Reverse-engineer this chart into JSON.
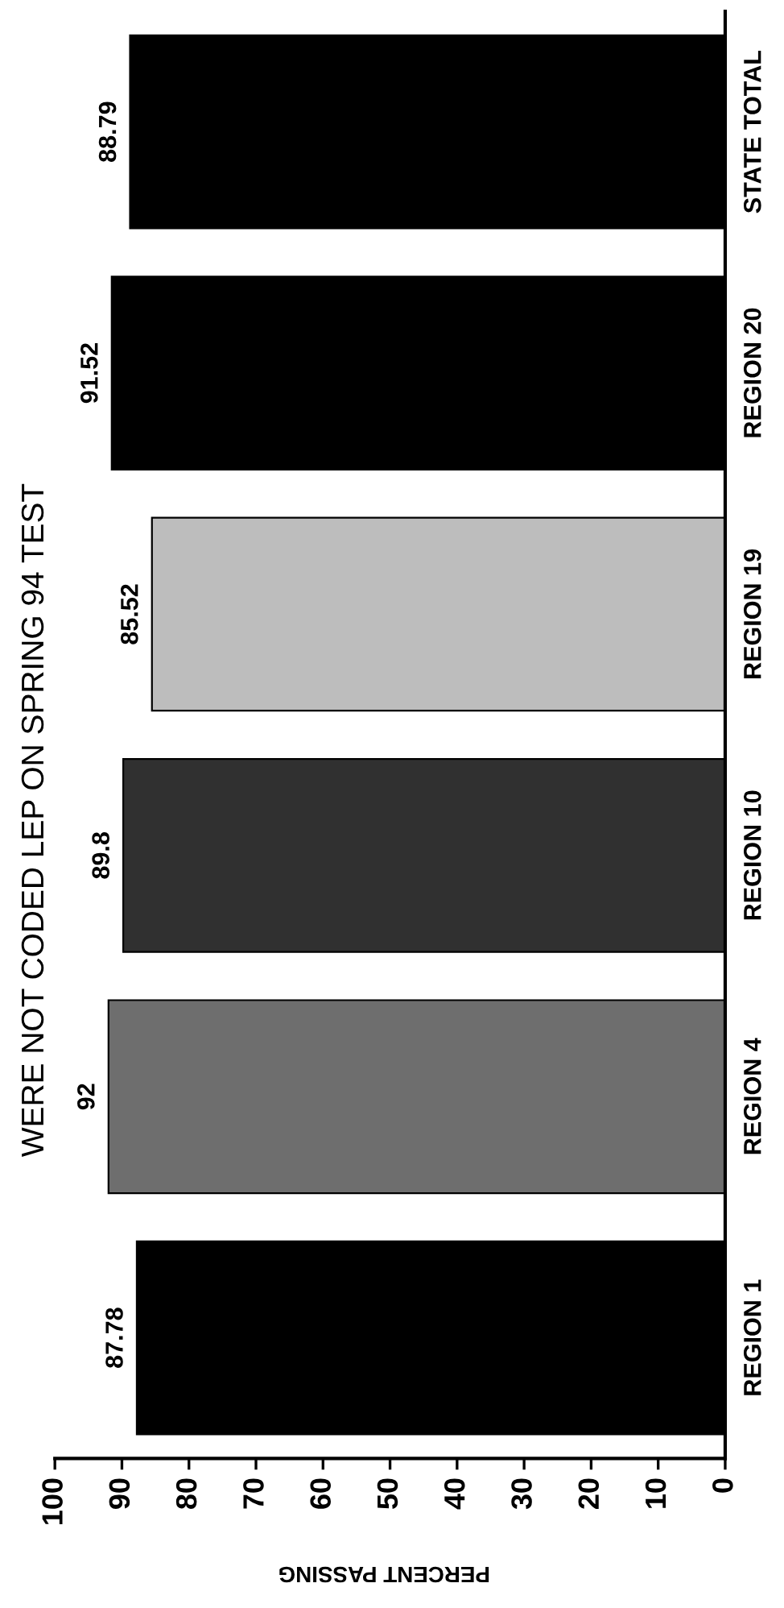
{
  "chart_data": {
    "type": "bar",
    "orientation": "horizontal",
    "title": "WERE NOT CODED LEP ON SPRING 94 TEST",
    "xlabel": "PERCENT PASSING",
    "categories": [
      "STATE TOTAL",
      "REGION 20",
      "REGION 19",
      "REGION 10",
      "REGION 4",
      "REGION 1"
    ],
    "values": [
      88.79,
      91.52,
      85.52,
      89.8,
      92,
      87.78
    ],
    "colors": [
      "#000000",
      "#000000",
      "#bdbdbd",
      "#303030",
      "#6e6e6e",
      "#000000"
    ],
    "xlim": [
      100,
      0
    ],
    "xticks": [
      0,
      10,
      20,
      30,
      40,
      50,
      60,
      70,
      80,
      90,
      100
    ],
    "data_labels": true,
    "grid": false,
    "legend": false
  }
}
